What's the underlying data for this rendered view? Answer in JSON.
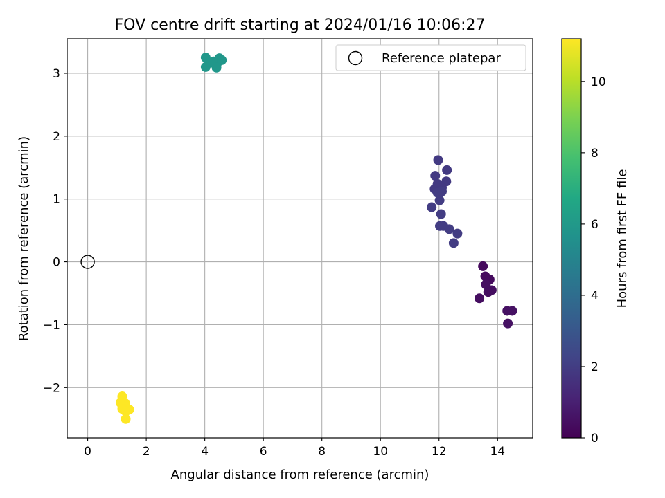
{
  "chart_data": {
    "type": "scatter",
    "title": "FOV centre drift starting at 2024/01/16 10:06:27",
    "xlabel": "Angular distance from reference (arcmin)",
    "ylabel": "Rotation from reference (arcmin)",
    "xlim": [
      -0.7,
      15.2
    ],
    "ylim": [
      -2.8,
      3.55
    ],
    "xticks": [
      0,
      2,
      4,
      6,
      8,
      10,
      12,
      14
    ],
    "yticks": [
      -2,
      -1,
      0,
      1,
      2,
      3
    ],
    "xtick_labels": [
      "0",
      "2",
      "4",
      "6",
      "8",
      "10",
      "12",
      "14"
    ],
    "ytick_labels": [
      "−2",
      "−1",
      "0",
      "1",
      "2",
      "3"
    ],
    "grid": true,
    "legend": {
      "placement": "top-right",
      "entries": [
        "Reference platepar"
      ]
    },
    "reference_point": {
      "name": "Reference platepar",
      "x": 0,
      "y": 0
    },
    "colorbar": {
      "label": "Hours from first FF file",
      "range": [
        0,
        11.2
      ],
      "ticks": [
        0,
        2,
        4,
        6,
        8,
        10
      ],
      "tick_labels": [
        "0",
        "2",
        "4",
        "6",
        "8",
        "10"
      ],
      "colormap": "viridis"
    },
    "series": [
      {
        "points": [
          {
            "x": 13.5,
            "y": -0.07,
            "h": 0.3
          },
          {
            "x": 13.58,
            "y": -0.23,
            "h": 0.3
          },
          {
            "x": 13.73,
            "y": -0.28,
            "h": 0.3
          },
          {
            "x": 13.6,
            "y": -0.36,
            "h": 0.4
          },
          {
            "x": 13.8,
            "y": -0.45,
            "h": 0.4
          },
          {
            "x": 13.68,
            "y": -0.48,
            "h": 0.4
          },
          {
            "x": 13.38,
            "y": -0.58,
            "h": 0.4
          },
          {
            "x": 14.33,
            "y": -0.78,
            "h": 0.5
          },
          {
            "x": 14.5,
            "y": -0.78,
            "h": 0.5
          },
          {
            "x": 14.35,
            "y": -0.98,
            "h": 0.5
          },
          {
            "x": 11.97,
            "y": 1.62,
            "h": 1.9
          },
          {
            "x": 12.27,
            "y": 1.46,
            "h": 1.9
          },
          {
            "x": 11.87,
            "y": 1.37,
            "h": 1.9
          },
          {
            "x": 12.25,
            "y": 1.28,
            "h": 1.9
          },
          {
            "x": 11.95,
            "y": 1.24,
            "h": 1.9
          },
          {
            "x": 12.1,
            "y": 1.18,
            "h": 1.9
          },
          {
            "x": 11.85,
            "y": 1.16,
            "h": 1.9
          },
          {
            "x": 11.95,
            "y": 1.1,
            "h": 2.0
          },
          {
            "x": 12.1,
            "y": 1.12,
            "h": 2.0
          },
          {
            "x": 12.02,
            "y": 0.98,
            "h": 2.0
          },
          {
            "x": 11.75,
            "y": 0.87,
            "h": 2.0
          },
          {
            "x": 12.07,
            "y": 0.76,
            "h": 2.0
          },
          {
            "x": 12.03,
            "y": 0.57,
            "h": 2.0
          },
          {
            "x": 12.15,
            "y": 0.57,
            "h": 2.0
          },
          {
            "x": 12.35,
            "y": 0.52,
            "h": 2.0
          },
          {
            "x": 12.63,
            "y": 0.45,
            "h": 2.0
          },
          {
            "x": 12.5,
            "y": 0.3,
            "h": 2.0
          },
          {
            "x": 4.03,
            "y": 3.25,
            "h": 5.9
          },
          {
            "x": 4.3,
            "y": 3.19,
            "h": 5.9
          },
          {
            "x": 4.45,
            "y": 3.18,
            "h": 5.9
          },
          {
            "x": 4.5,
            "y": 3.24,
            "h": 5.9
          },
          {
            "x": 4.58,
            "y": 3.21,
            "h": 5.9
          },
          {
            "x": 4.03,
            "y": 3.1,
            "h": 5.9
          },
          {
            "x": 4.4,
            "y": 3.09,
            "h": 5.9
          },
          {
            "x": 4.2,
            "y": 3.17,
            "h": 5.9
          },
          {
            "x": 1.18,
            "y": -2.14,
            "h": 11.2
          },
          {
            "x": 1.12,
            "y": -2.24,
            "h": 11.2
          },
          {
            "x": 1.28,
            "y": -2.25,
            "h": 11.2
          },
          {
            "x": 1.22,
            "y": -2.3,
            "h": 11.2
          },
          {
            "x": 1.18,
            "y": -2.34,
            "h": 11.2
          },
          {
            "x": 1.42,
            "y": -2.35,
            "h": 11.2
          },
          {
            "x": 1.3,
            "y": -2.38,
            "h": 11.2
          },
          {
            "x": 1.3,
            "y": -2.5,
            "h": 11.2
          }
        ]
      }
    ]
  }
}
